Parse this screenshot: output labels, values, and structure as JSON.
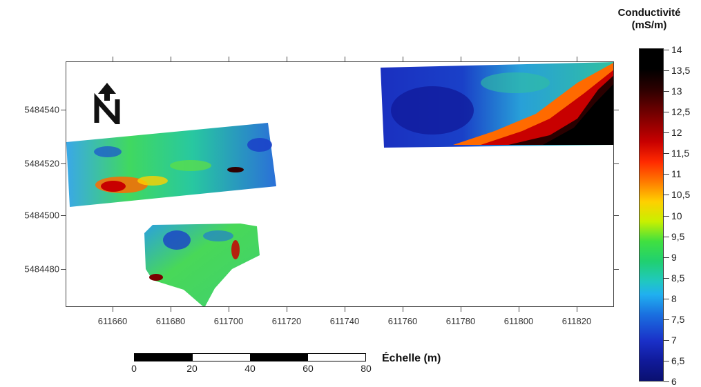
{
  "colorbar": {
    "title_line1": "Conductivité",
    "title_line2": "(mS/m)",
    "ticks": [
      "14",
      "13,5",
      "13",
      "12,5",
      "12",
      "11,5",
      "11",
      "10,5",
      "10",
      "9,5",
      "9",
      "8,5",
      "8",
      "7,5",
      "7",
      "6,5",
      "6"
    ],
    "colors": [
      "#000000",
      "#7a0000",
      "#c80000",
      "#ff7a00",
      "#ffd000",
      "#40e040",
      "#20c8c0",
      "#1a70e0",
      "#0a1070"
    ]
  },
  "map": {
    "y_ticks": [
      "5484540",
      "5484520",
      "5484500",
      "5484480"
    ],
    "x_ticks": [
      "611660",
      "611680",
      "611700",
      "611720",
      "611740",
      "611760",
      "611780",
      "611800",
      "611820"
    ],
    "north_icon": "north-arrow-icon"
  },
  "scale": {
    "title": "Échelle (m)",
    "labels": [
      "0",
      "20",
      "40",
      "60",
      "80"
    ]
  }
}
